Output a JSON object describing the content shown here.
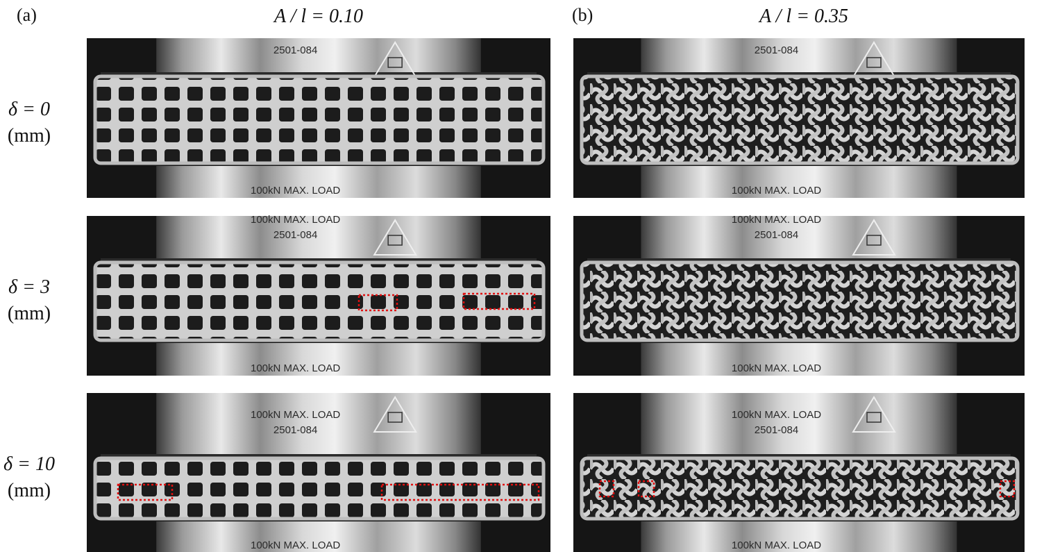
{
  "panel_labels": [
    "(a)",
    "(b)"
  ],
  "column_titles": [
    "A / l = 0.10",
    "A / l = 0.35"
  ],
  "rows": [
    {
      "delta": "δ = 0",
      "unit": "(mm)"
    },
    {
      "delta": "δ = 3",
      "unit": "(mm)"
    },
    {
      "delta": "δ = 10",
      "unit": "(mm)"
    }
  ],
  "machine_labels": {
    "serial": "2501-084",
    "load": "100kN MAX. LOAD"
  }
}
